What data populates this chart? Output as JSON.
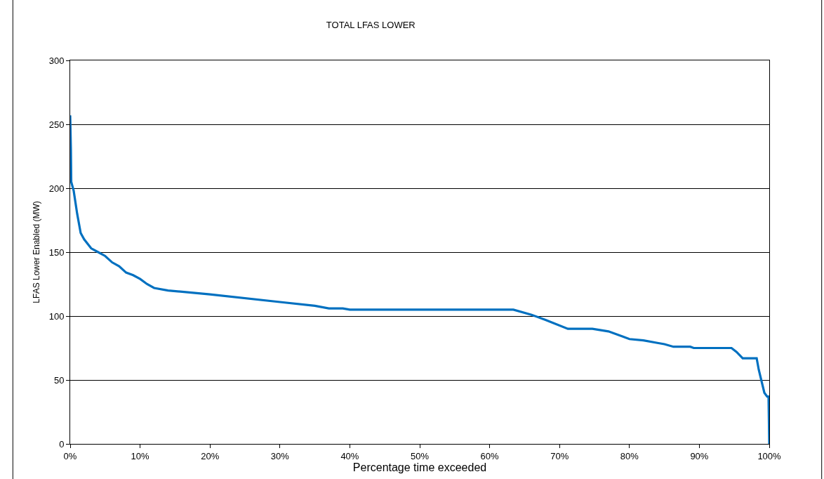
{
  "chart_data": {
    "type": "line",
    "title": "TOTAL LFAS LOWER",
    "xlabel": "Percentage time exceeded",
    "ylabel": "LFAS Lower Enabled (MW)",
    "series": [
      {
        "color": "#0070c0",
        "x": [
          0,
          0.1,
          0.15,
          0.5,
          1,
          1.5,
          2,
          3,
          4,
          5,
          6,
          7,
          8,
          9,
          10,
          11,
          12,
          14,
          20,
          30,
          35,
          37,
          39,
          40,
          63.4,
          66,
          68,
          71.2,
          74.7,
          77,
          79,
          80,
          82,
          84,
          85,
          86.3,
          88.7,
          89.2,
          94.6,
          95.3,
          96.2,
          98.2,
          98.5,
          99.3,
          99.7,
          99.9,
          100
        ],
        "values": [
          257,
          230,
          205,
          198,
          180,
          165,
          160,
          153,
          150,
          147,
          142,
          139,
          134,
          132,
          129,
          125,
          122,
          120,
          117,
          111,
          108,
          106,
          106,
          105,
          105,
          101,
          97,
          90,
          90,
          88,
          84,
          82,
          81,
          79,
          78,
          76,
          76,
          75,
          75,
          72,
          67,
          67,
          58,
          40,
          37,
          37,
          0
        ]
      }
    ],
    "xlim": [
      0,
      100
    ],
    "ylim": [
      0,
      300
    ],
    "xticks": [
      {
        "value": 0,
        "label": "0%"
      },
      {
        "value": 10,
        "label": "10%"
      },
      {
        "value": 20,
        "label": "20%"
      },
      {
        "value": 30,
        "label": "30%"
      },
      {
        "value": 40,
        "label": "40%"
      },
      {
        "value": 50,
        "label": "50%"
      },
      {
        "value": 60,
        "label": "60%"
      },
      {
        "value": 70,
        "label": "70%"
      },
      {
        "value": 80,
        "label": "80%"
      },
      {
        "value": 90,
        "label": "90%"
      },
      {
        "value": 100,
        "label": "100%"
      }
    ],
    "yticks": [
      0,
      50,
      100,
      150,
      200,
      250,
      300
    ],
    "grid": "y",
    "marker": "none",
    "line_style": "solid"
  }
}
